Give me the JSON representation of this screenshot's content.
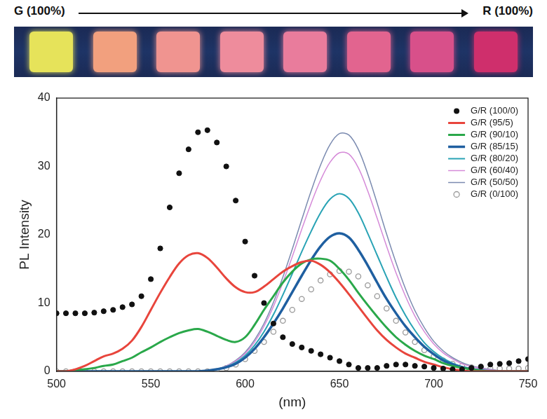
{
  "chart_data": {
    "type": "line",
    "x_label": "(nm)",
    "y_label": "PL Intensity",
    "x": [
      500,
      505,
      510,
      515,
      520,
      525,
      530,
      535,
      540,
      545,
      550,
      555,
      560,
      565,
      570,
      575,
      580,
      585,
      590,
      595,
      600,
      605,
      610,
      615,
      620,
      625,
      630,
      635,
      640,
      645,
      650,
      655,
      660,
      665,
      670,
      675,
      680,
      685,
      690,
      695,
      700,
      705,
      710,
      715,
      720,
      725,
      730,
      735,
      740,
      745,
      750
    ],
    "series": [
      {
        "name": "G/R (100/0)",
        "color": "#111111",
        "marker": "circle",
        "line_style": "none",
        "values": [
          8.5,
          8.5,
          8.5,
          8.5,
          8.6,
          8.8,
          9.0,
          9.4,
          9.8,
          11,
          13.5,
          18,
          24,
          29,
          32.5,
          35,
          35.3,
          33.5,
          30,
          25,
          19,
          14,
          10,
          7,
          5,
          4,
          3.5,
          3,
          2.5,
          2,
          1.5,
          1,
          0.5,
          0.5,
          0.5,
          0.8,
          1,
          1,
          0.8,
          0.7,
          0.5,
          0.4,
          0.3,
          0.3,
          0.5,
          0.7,
          1,
          1.1,
          1.2,
          1.5,
          1.8
        ]
      },
      {
        "name": "G/R (95/5)",
        "color": "#e8453c",
        "marker": "none",
        "line_style": "solid",
        "values": [
          0,
          0,
          0.3,
          0.8,
          1.5,
          2.2,
          2.6,
          3.3,
          4.5,
          6.5,
          9,
          11.5,
          13.8,
          15.8,
          17,
          17.3,
          16.6,
          15.2,
          13.6,
          12.3,
          11.6,
          11.6,
          12.4,
          13.5,
          14.6,
          15.4,
          16,
          16.2,
          15.6,
          14.5,
          13,
          11.3,
          9.5,
          7.7,
          6,
          4.6,
          3.5,
          2.6,
          2,
          1.4,
          1,
          0.6,
          0.3,
          0.1,
          0,
          0,
          0,
          0,
          0,
          0,
          0
        ]
      },
      {
        "name": "G/R (90/10)",
        "color": "#2aa84a",
        "marker": "none",
        "line_style": "solid",
        "values": [
          0,
          0,
          0.2,
          0.3,
          0.5,
          0.8,
          1,
          1.5,
          2,
          2.8,
          3.5,
          4.3,
          5,
          5.6,
          6,
          6.2,
          5.8,
          5.2,
          4.6,
          4.3,
          5,
          6.8,
          9,
          11,
          13,
          14.6,
          15.8,
          16.4,
          16.5,
          16.2,
          15,
          13.4,
          11.5,
          9.7,
          8,
          6.4,
          5,
          3.9,
          3,
          2.3,
          1.8,
          1.2,
          0.8,
          0.5,
          0.3,
          0.1,
          0,
          0,
          0,
          0,
          0
        ]
      },
      {
        "name": "G/R (85/15)",
        "color": "#1f5fa0",
        "marker": "none",
        "line_style": "solid",
        "values": [
          0,
          0,
          0,
          0,
          0,
          0,
          0,
          0,
          0,
          0,
          0,
          0,
          0,
          0,
          0,
          0,
          0.1,
          0.3,
          0.6,
          1.1,
          2,
          3.3,
          5,
          7,
          9.2,
          11.6,
          14,
          16.3,
          18.3,
          19.7,
          20.2,
          19.6,
          17.8,
          15.5,
          13,
          10.6,
          8.5,
          6.6,
          5,
          3.6,
          2.5,
          1.6,
          1,
          0.6,
          0.3,
          0.1,
          0,
          0,
          0,
          0,
          0
        ]
      },
      {
        "name": "G/R (80/20)",
        "color": "#29a3b5",
        "marker": "none",
        "line_style": "solid",
        "values": [
          0,
          0,
          0,
          0,
          0,
          0,
          0,
          0,
          0,
          0,
          0,
          0,
          0,
          0,
          0,
          0,
          0.1,
          0.3,
          0.7,
          1.3,
          2.3,
          3.8,
          5.8,
          8.3,
          11.2,
          14.3,
          17.5,
          20.5,
          23.2,
          25.2,
          26,
          25.3,
          23.2,
          20.2,
          17,
          13.8,
          10.8,
          8.2,
          6,
          4.2,
          2.9,
          1.9,
          1.2,
          0.7,
          0.4,
          0.2,
          0.1,
          0,
          0,
          0,
          0
        ]
      },
      {
        "name": "G/R (60/40)",
        "color": "#d58ad8",
        "marker": "none",
        "line_style": "solid",
        "values": [
          0,
          0,
          0,
          0,
          0,
          0,
          0,
          0,
          0,
          0,
          0,
          0,
          0,
          0,
          0,
          0,
          0.1,
          0.3,
          0.8,
          1.5,
          2.6,
          4.3,
          6.6,
          9.5,
          13,
          16.8,
          20.8,
          24.6,
          28,
          30.6,
          32,
          31.8,
          29.8,
          26.4,
          22.4,
          18.3,
          14.4,
          11,
          8.1,
          5.8,
          4,
          2.7,
          1.8,
          1.1,
          0.7,
          0.4,
          0.2,
          0.1,
          0,
          0,
          0
        ]
      },
      {
        "name": "G/R (50/50)",
        "color": "#7b8bb0",
        "marker": "none",
        "line_style": "solid",
        "values": [
          0,
          0,
          0,
          0,
          0,
          0,
          0,
          0,
          0,
          0,
          0,
          0,
          0,
          0,
          0,
          0,
          0.1,
          0.3,
          0.8,
          1.6,
          2.8,
          4.6,
          7,
          10.1,
          13.8,
          17.9,
          22.2,
          26.4,
          30.2,
          33.2,
          34.8,
          34.6,
          32.5,
          28.9,
          24.6,
          20.1,
          15.9,
          12.1,
          8.9,
          6.4,
          4.4,
          3,
          2,
          1.3,
          0.8,
          0.5,
          0.3,
          0.1,
          0,
          0,
          0
        ]
      },
      {
        "name": "G/R (0/100)",
        "color": "#999999",
        "marker": "open_circle",
        "line_style": "none",
        "values": [
          0,
          0,
          0,
          0,
          0,
          0,
          0,
          0,
          0,
          0,
          0,
          0,
          0,
          0,
          0,
          0,
          0,
          0,
          0.5,
          1,
          1.8,
          3,
          4.3,
          5.8,
          7.4,
          9,
          10.6,
          12,
          13.3,
          14.2,
          14.7,
          14.6,
          13.9,
          12.6,
          11,
          9.2,
          7.4,
          5.7,
          4.3,
          3.1,
          2.2,
          1.6,
          1.1,
          0.8,
          0.6,
          0.5,
          0.4,
          0.4,
          0.4,
          0.4,
          0.5
        ]
      }
    ],
    "xlim": [
      500,
      750
    ],
    "xticks": [
      500,
      550,
      600,
      650,
      700,
      750
    ],
    "ylim": [
      0,
      40
    ],
    "yticks": [
      0,
      10,
      20,
      30,
      40
    ],
    "grid": false,
    "legend": "upper right"
  },
  "strip": {
    "start_label": "G (100%)",
    "end_label": "R (100%)",
    "sample_colors": [
      "#e6e35a",
      "#f2a07e",
      "#f09490",
      "#ee8c9c",
      "#e97c9c",
      "#e2648f",
      "#d8508a",
      "#cf2f6c"
    ]
  }
}
